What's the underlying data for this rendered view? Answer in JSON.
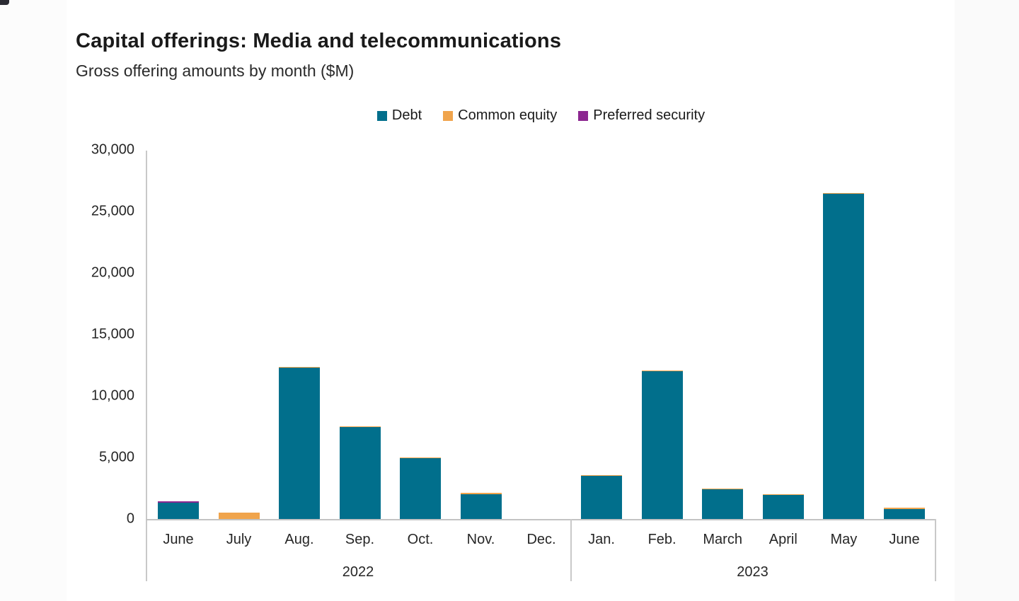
{
  "header": {
    "title": "Capital offerings: Media and telecommunications",
    "subtitle": "Gross offering amounts by month ($M)"
  },
  "chart_data": {
    "type": "bar",
    "stacked": true,
    "title": "Capital offerings: Media and telecommunications",
    "subtitle": "Gross offering amounts by month ($M)",
    "unit": "$M",
    "ylim": [
      0,
      30000
    ],
    "ytick_step": 5000,
    "ytick_labels": [
      "0",
      "5,000",
      "10,000",
      "15,000",
      "20,000",
      "25,000",
      "30,000"
    ],
    "grid": false,
    "legend_position": "top-center",
    "legend": [
      {
        "key": "debt",
        "label": "Debt",
        "color": "#016F8C"
      },
      {
        "key": "common_equity",
        "label": "Common equity",
        "color": "#F0A44C"
      },
      {
        "key": "preferred_security",
        "label": "Preferred security",
        "color": "#8C2790"
      }
    ],
    "groups": [
      {
        "year": "2022",
        "months": [
          "June",
          "July",
          "Aug.",
          "Sep.",
          "Oct.",
          "Nov.",
          "Dec."
        ],
        "series": {
          "debt": [
            1300,
            0,
            12300,
            7450,
            4950,
            2000,
            0
          ],
          "common_equity": [
            0,
            500,
            60,
            60,
            40,
            120,
            0
          ],
          "preferred_security": [
            100,
            0,
            0,
            0,
            0,
            0,
            0
          ]
        }
      },
      {
        "year": "2023",
        "months": [
          "Jan.",
          "Feb.",
          "March",
          "April",
          "May",
          "June"
        ],
        "series": {
          "debt": [
            3500,
            12000,
            2400,
            1950,
            26450,
            800
          ],
          "common_equity": [
            50,
            60,
            50,
            40,
            60,
            120
          ],
          "preferred_security": [
            0,
            0,
            0,
            0,
            0,
            0
          ]
        }
      }
    ]
  }
}
